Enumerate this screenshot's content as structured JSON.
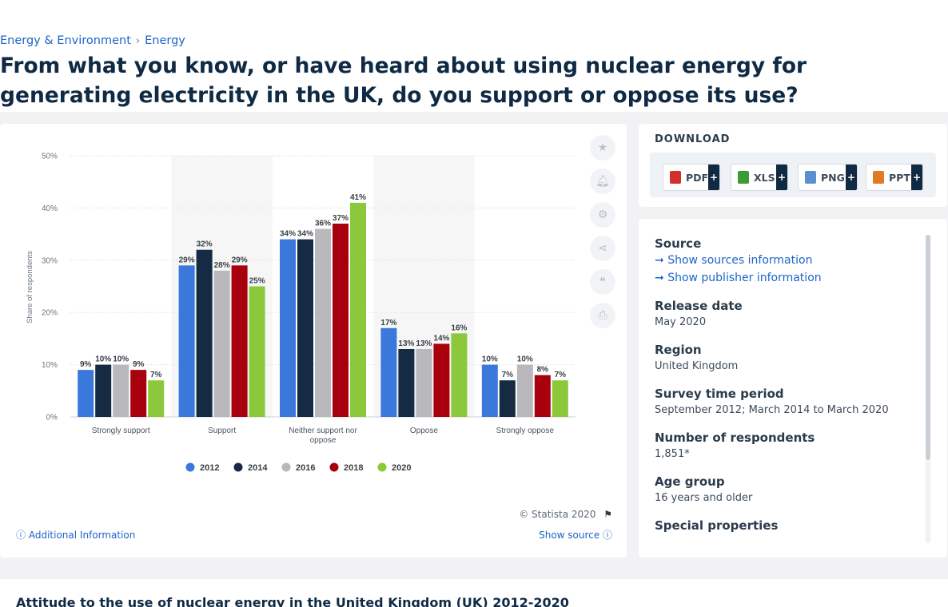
{
  "breadcrumb": {
    "items": [
      "Energy & Environment",
      "Energy"
    ],
    "sep": "›"
  },
  "title": "From what you know, or have heard about using nuclear energy for generating electricity in the UK, do you support or oppose its use?",
  "chart_data": {
    "type": "bar",
    "ylabel": "Share of respondents",
    "ylim": [
      0,
      50
    ],
    "y_ticks": [
      "0%",
      "10%",
      "20%",
      "30%",
      "40%",
      "50%"
    ],
    "categories": [
      "Strongly support",
      "Support",
      "Neither support nor oppose",
      "Oppose",
      "Strongly oppose"
    ],
    "series": [
      {
        "name": "2012",
        "color": "#3a78dc",
        "values": [
          9,
          29,
          34,
          17,
          10
        ]
      },
      {
        "name": "2014",
        "color": "#152a43",
        "values": [
          10,
          32,
          34,
          13,
          7
        ]
      },
      {
        "name": "2016",
        "color": "#b9b9bd",
        "values": [
          10,
          28,
          36,
          13,
          10
        ]
      },
      {
        "name": "2018",
        "color": "#a8000c",
        "values": [
          9,
          29,
          37,
          14,
          8
        ]
      },
      {
        "name": "2020",
        "color": "#8cc83c",
        "values": [
          7,
          25,
          41,
          16,
          7
        ]
      }
    ],
    "legend_position": "bottom",
    "value_suffix": "%"
  },
  "chart_footer": {
    "copyright": "© Statista 2020",
    "additional_info": "Additional Information",
    "show_source": "Show source"
  },
  "tools": [
    "star-icon",
    "bell-icon",
    "gear-icon",
    "share-icon",
    "quote-icon",
    "print-icon"
  ],
  "download": {
    "title": "DOWNLOAD",
    "buttons": [
      {
        "label": "PDF",
        "color": "#d0312d"
      },
      {
        "label": "XLS",
        "color": "#3d9b35"
      },
      {
        "label": "PNG",
        "color": "#5a8fd0"
      },
      {
        "label": "PPT",
        "color": "#e07b22"
      }
    ],
    "plus": "+"
  },
  "info": {
    "source_label": "Source",
    "show_sources": "Show sources information",
    "show_publisher": "Show publisher information",
    "release_date_label": "Release date",
    "release_date": "May 2020",
    "region_label": "Region",
    "region": "United Kingdom",
    "survey_label": "Survey time period",
    "survey": "September 2012; March 2014 to March 2020",
    "respondents_label": "Number of respondents",
    "respondents": "1,851*",
    "age_label": "Age group",
    "age": "16 years and older",
    "special_label": "Special properties"
  },
  "bottom_title": "Attitude to the use of nuclear energy in the United Kingdom (UK) 2012-2020"
}
